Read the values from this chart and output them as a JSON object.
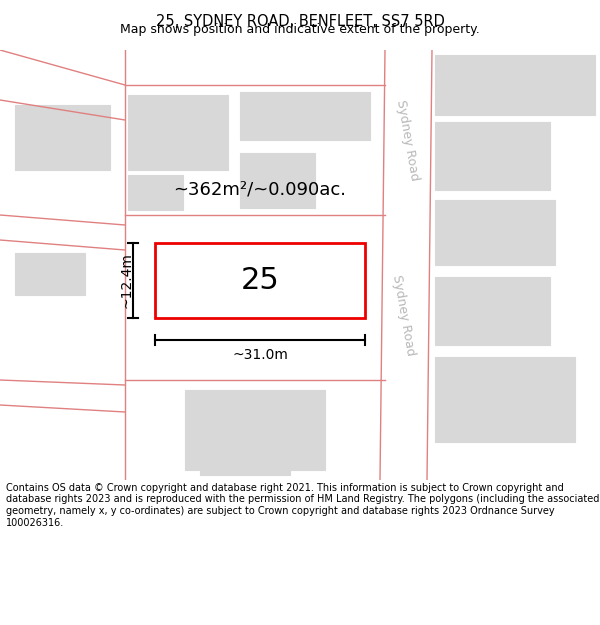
{
  "title": "25, SYDNEY ROAD, BENFLEET, SS7 5RD",
  "subtitle": "Map shows position and indicative extent of the property.",
  "footer": "Contains OS data © Crown copyright and database right 2021. This information is subject to Crown copyright and database rights 2023 and is reproduced with the permission of HM Land Registry. The polygons (including the associated geometry, namely x, y co-ordinates) are subject to Crown copyright and database rights 2023 Ordnance Survey 100026316.",
  "bg_color": "#ffffff",
  "map_bg": "#f0f0f0",
  "road_line_color": "#e08080",
  "building_fill": "#d8d8d8",
  "building_edge": "#d8d8d8",
  "highlight_fill": "#ffffff",
  "highlight_edge": "#ee0000",
  "highlight_lw": 2.0,
  "road_label_color": "#b8b8b8",
  "area_text": "~362m²/~0.090ac.",
  "number_text": "25",
  "width_text": "~31.0m",
  "height_text": "~12.4m",
  "title_fontsize": 10.5,
  "subtitle_fontsize": 9,
  "footer_fontsize": 7.0
}
